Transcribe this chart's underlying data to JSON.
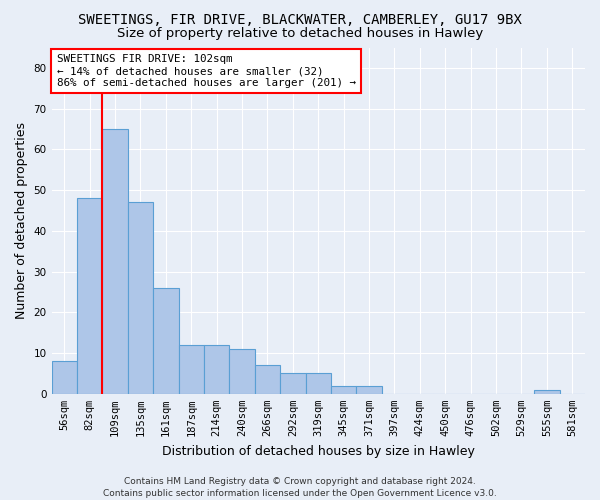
{
  "title1": "SWEETINGS, FIR DRIVE, BLACKWATER, CAMBERLEY, GU17 9BX",
  "title2": "Size of property relative to detached houses in Hawley",
  "xlabel": "Distribution of detached houses by size in Hawley",
  "ylabel": "Number of detached properties",
  "bar_color": "#aec6e8",
  "bar_edge_color": "#5a9fd4",
  "categories": [
    "56sqm",
    "82sqm",
    "109sqm",
    "135sqm",
    "161sqm",
    "187sqm",
    "214sqm",
    "240sqm",
    "266sqm",
    "292sqm",
    "319sqm",
    "345sqm",
    "371sqm",
    "397sqm",
    "424sqm",
    "450sqm",
    "476sqm",
    "502sqm",
    "529sqm",
    "555sqm",
    "581sqm"
  ],
  "values": [
    8,
    48,
    65,
    47,
    26,
    12,
    12,
    11,
    7,
    5,
    5,
    2,
    2,
    0,
    0,
    0,
    0,
    0,
    0,
    1,
    0
  ],
  "ylim": [
    0,
    85
  ],
  "yticks": [
    0,
    10,
    20,
    30,
    40,
    50,
    60,
    70,
    80
  ],
  "redline_idx": 2,
  "annotation_line1": "SWEETINGS FIR DRIVE: 102sqm",
  "annotation_line2": "← 14% of detached houses are smaller (32)",
  "annotation_line3": "86% of semi-detached houses are larger (201) →",
  "footer": "Contains HM Land Registry data © Crown copyright and database right 2024.\nContains public sector information licensed under the Open Government Licence v3.0.",
  "background_color": "#e8eef7",
  "grid_color": "#ffffff",
  "title_fontsize": 10,
  "subtitle_fontsize": 9.5,
  "axis_label_fontsize": 9,
  "tick_fontsize": 7.5,
  "footer_fontsize": 6.5
}
